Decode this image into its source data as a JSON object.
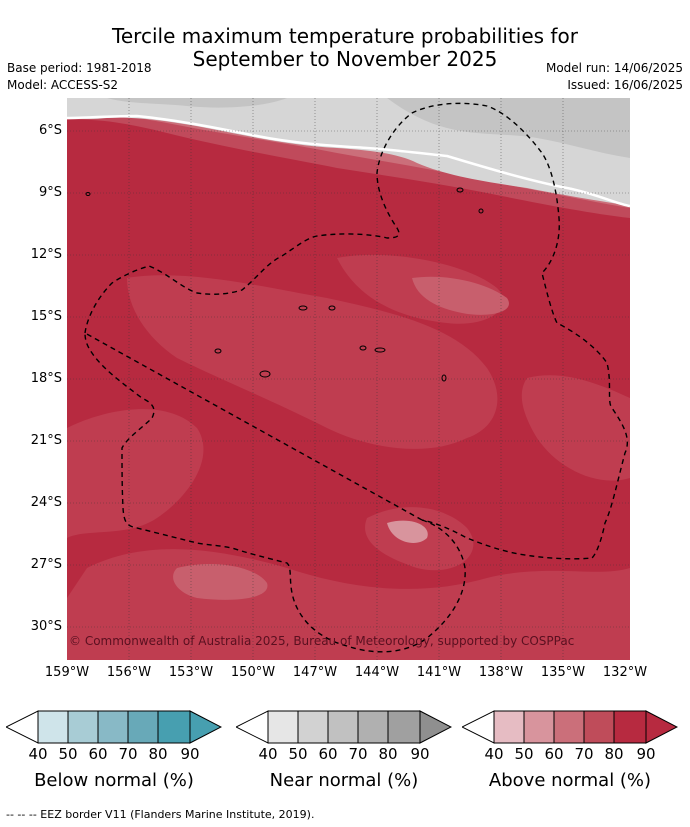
{
  "title_line1": "Tercile maximum temperature probabilities for",
  "title_line2": "September to November 2025",
  "base_period": "Base period: 1981-2018",
  "model": "Model: ACCESS-S2",
  "model_run": "Model run: 14/06/2025",
  "issued": "Issued: 16/06/2025",
  "copyright": "© Commonwealth of Australia 2025, Bureau of Meteorology, supported by COSPPac",
  "lat_ticks": [
    "6°S",
    "9°S",
    "12°S",
    "15°S",
    "18°S",
    "21°S",
    "24°S",
    "27°S",
    "30°S"
  ],
  "lon_ticks": [
    "159°W",
    "156°W",
    "153°W",
    "150°W",
    "147°W",
    "144°W",
    "141°W",
    "138°W",
    "135°W",
    "132°W"
  ],
  "colorbars": [
    {
      "label": "Below normal (%)",
      "ticks": [
        "40",
        "50",
        "60",
        "70",
        "80",
        "90"
      ],
      "colors": [
        "#ffffff",
        "#cfe4ea",
        "#a8ccd5",
        "#88b9c6",
        "#68a9b8",
        "#479fb0"
      ]
    },
    {
      "label": "Near normal (%)",
      "ticks": [
        "40",
        "50",
        "60",
        "70",
        "80",
        "90"
      ],
      "colors": [
        "#ffffff",
        "#e6e6e6",
        "#d2d2d2",
        "#c1c1c1",
        "#b0b0b0",
        "#999999"
      ]
    },
    {
      "label": "Above normal (%)",
      "ticks": [
        "40",
        "50",
        "60",
        "70",
        "80",
        "90"
      ],
      "colors": [
        "#ffffff",
        "#e6bcc3",
        "#d8949d",
        "#cb6f7a",
        "#bf4c5a",
        "#b72a40"
      ]
    }
  ],
  "legend_note": "-- -- -- EEZ border V11 (Flanders Marine Institute, 2019)."
}
